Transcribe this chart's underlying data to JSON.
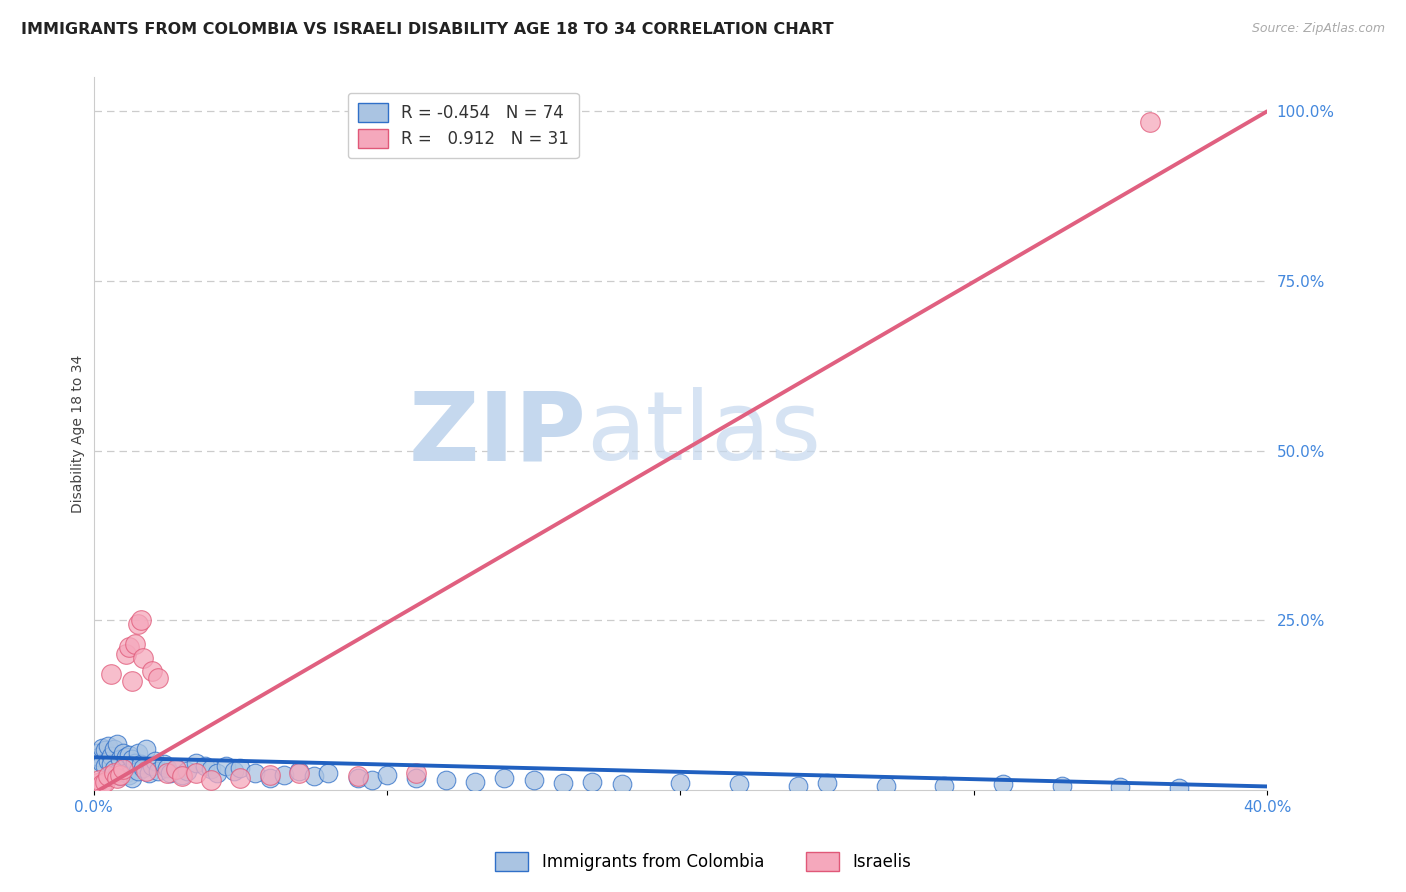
{
  "title": "IMMIGRANTS FROM COLOMBIA VS ISRAELI DISABILITY AGE 18 TO 34 CORRELATION CHART",
  "source": "Source: ZipAtlas.com",
  "ylabel": "Disability Age 18 to 34",
  "xlim": [
    0.0,
    0.4
  ],
  "ylim": [
    0.0,
    1.05
  ],
  "yticks": [
    0.0,
    0.25,
    0.5,
    0.75,
    1.0
  ],
  "ytick_labels": [
    "",
    "25.0%",
    "50.0%",
    "75.0%",
    "100.0%"
  ],
  "xticks": [
    0.0,
    0.1,
    0.2,
    0.3,
    0.4
  ],
  "xtick_labels": [
    "0.0%",
    "",
    "",
    "",
    "40.0%"
  ],
  "colombia_color": "#aac4e2",
  "israeli_color": "#f5a8bc",
  "colombia_edge_color": "#3070c8",
  "israeli_edge_color": "#e05878",
  "colombia_line_color": "#2060c0",
  "israeli_line_color": "#e06080",
  "legend_R_colombia": "-0.454",
  "legend_N_colombia": "74",
  "legend_R_israeli": "0.912",
  "legend_N_israeli": "31",
  "watermark_zip": "ZIP",
  "watermark_atlas": "atlas",
  "colombia_scatter_x": [
    0.001,
    0.002,
    0.003,
    0.003,
    0.004,
    0.004,
    0.005,
    0.005,
    0.006,
    0.006,
    0.007,
    0.007,
    0.008,
    0.008,
    0.009,
    0.009,
    0.01,
    0.01,
    0.011,
    0.011,
    0.012,
    0.012,
    0.013,
    0.013,
    0.014,
    0.015,
    0.015,
    0.016,
    0.017,
    0.018,
    0.019,
    0.02,
    0.021,
    0.022,
    0.024,
    0.025,
    0.026,
    0.028,
    0.03,
    0.032,
    0.035,
    0.038,
    0.04,
    0.042,
    0.045,
    0.048,
    0.05,
    0.055,
    0.06,
    0.065,
    0.07,
    0.075,
    0.08,
    0.09,
    0.095,
    0.1,
    0.11,
    0.12,
    0.13,
    0.14,
    0.15,
    0.16,
    0.17,
    0.18,
    0.2,
    0.22,
    0.24,
    0.25,
    0.27,
    0.29,
    0.31,
    0.33,
    0.35,
    0.37
  ],
  "colombia_scatter_y": [
    0.055,
    0.048,
    0.062,
    0.04,
    0.058,
    0.035,
    0.065,
    0.042,
    0.05,
    0.038,
    0.06,
    0.03,
    0.068,
    0.025,
    0.045,
    0.02,
    0.055,
    0.032,
    0.048,
    0.025,
    0.052,
    0.022,
    0.045,
    0.018,
    0.04,
    0.055,
    0.028,
    0.038,
    0.032,
    0.06,
    0.025,
    0.035,
    0.042,
    0.028,
    0.038,
    0.032,
    0.025,
    0.03,
    0.022,
    0.028,
    0.04,
    0.035,
    0.03,
    0.025,
    0.035,
    0.028,
    0.032,
    0.025,
    0.018,
    0.022,
    0.028,
    0.02,
    0.025,
    0.018,
    0.015,
    0.022,
    0.018,
    0.015,
    0.012,
    0.018,
    0.015,
    0.01,
    0.012,
    0.008,
    0.01,
    0.008,
    0.006,
    0.01,
    0.006,
    0.005,
    0.008,
    0.005,
    0.004,
    0.003
  ],
  "israeli_scatter_x": [
    0.001,
    0.002,
    0.003,
    0.004,
    0.005,
    0.006,
    0.007,
    0.008,
    0.009,
    0.01,
    0.011,
    0.012,
    0.013,
    0.014,
    0.015,
    0.016,
    0.017,
    0.018,
    0.02,
    0.022,
    0.025,
    0.028,
    0.03,
    0.035,
    0.04,
    0.05,
    0.06,
    0.07,
    0.09,
    0.11,
    0.36
  ],
  "israeli_scatter_y": [
    0.01,
    0.015,
    0.008,
    0.012,
    0.02,
    0.17,
    0.025,
    0.018,
    0.022,
    0.03,
    0.2,
    0.21,
    0.16,
    0.215,
    0.245,
    0.25,
    0.195,
    0.028,
    0.175,
    0.165,
    0.025,
    0.03,
    0.02,
    0.025,
    0.015,
    0.018,
    0.022,
    0.025,
    0.02,
    0.025,
    0.985
  ],
  "colombia_trend_x": [
    0.0,
    0.4
  ],
  "colombia_trend_y": [
    0.048,
    0.005
  ],
  "israeli_trend_x": [
    0.0,
    0.4
  ],
  "israeli_trend_y": [
    -0.005,
    1.0
  ],
  "background_color": "#ffffff",
  "grid_color": "#cccccc",
  "title_fontsize": 11.5,
  "axis_label_fontsize": 10,
  "tick_fontsize": 11,
  "legend_fontsize": 12,
  "tick_color": "#4488dd",
  "title_color": "#222222",
  "source_color": "#aaaaaa"
}
